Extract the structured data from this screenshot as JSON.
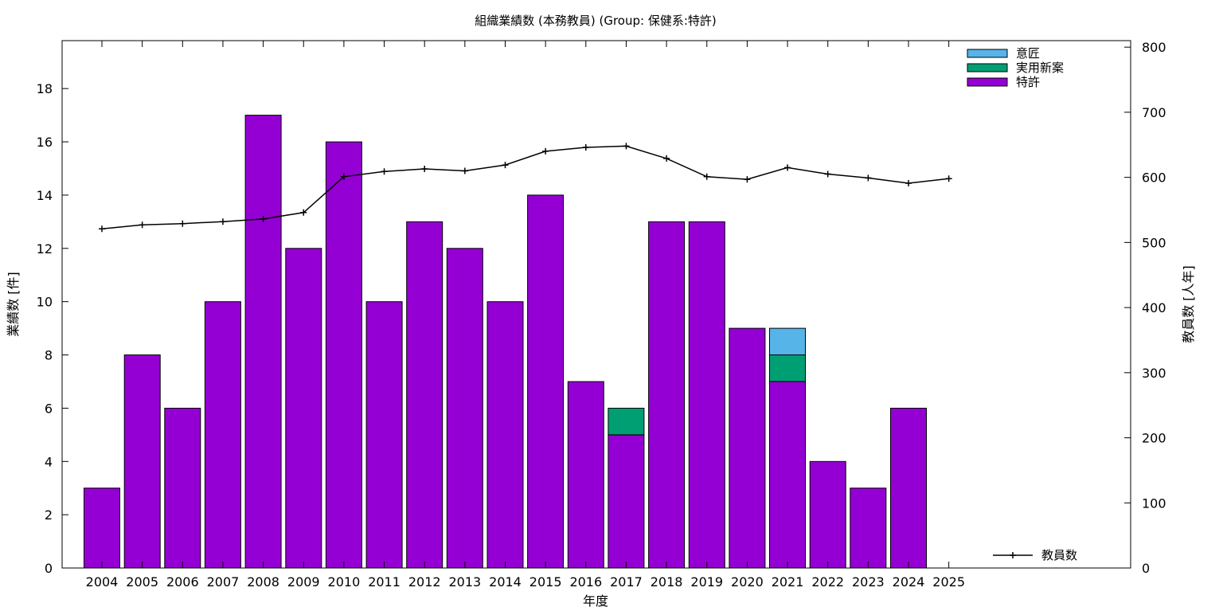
{
  "chart_data": {
    "type": "bar",
    "title": "組織業績数 (本務教員) (Group: 保健系:特許)",
    "xlabel": "年度",
    "ylabel": "業績数 [件]",
    "y2label": "教員数 [人年]",
    "categories": [
      "2004",
      "2005",
      "2006",
      "2007",
      "2008",
      "2009",
      "2010",
      "2011",
      "2012",
      "2013",
      "2014",
      "2015",
      "2016",
      "2017",
      "2018",
      "2019",
      "2020",
      "2021",
      "2022",
      "2023",
      "2024",
      "2025"
    ],
    "stacked": true,
    "ylim": [
      0,
      19.8
    ],
    "y2lim": [
      0,
      810
    ],
    "yticks": [
      0,
      2,
      4,
      6,
      8,
      10,
      12,
      14,
      16,
      18
    ],
    "y2ticks": [
      0,
      100,
      200,
      300,
      400,
      500,
      600,
      700,
      800
    ],
    "series": [
      {
        "name": "特許",
        "color": "#9400D3",
        "values": [
          3,
          8,
          6,
          10,
          17,
          12,
          16,
          10,
          13,
          12,
          10,
          14,
          7,
          5,
          13,
          13,
          9,
          7,
          4,
          3,
          6,
          0
        ]
      },
      {
        "name": "実用新案",
        "color": "#009E73",
        "values": [
          0,
          0,
          0,
          0,
          0,
          0,
          0,
          0,
          0,
          0,
          0,
          0,
          0,
          1,
          0,
          0,
          0,
          1,
          0,
          0,
          0,
          0
        ]
      },
      {
        "name": "意匠",
        "color": "#56B4E9",
        "values": [
          0,
          0,
          0,
          0,
          0,
          0,
          0,
          0,
          0,
          0,
          0,
          0,
          0,
          0,
          0,
          0,
          0,
          1,
          0,
          0,
          0,
          0
        ]
      }
    ],
    "line_series": {
      "name": "教員数",
      "axis": "y2",
      "color": "#000000",
      "values": [
        521,
        527,
        529,
        532,
        536,
        546,
        601,
        609,
        613,
        610,
        619,
        640,
        646,
        648,
        629,
        601,
        597,
        615,
        605,
        599,
        591,
        598
      ]
    },
    "legend_position": "top-right",
    "line_legend_position": "bottom-right",
    "grid": false
  }
}
